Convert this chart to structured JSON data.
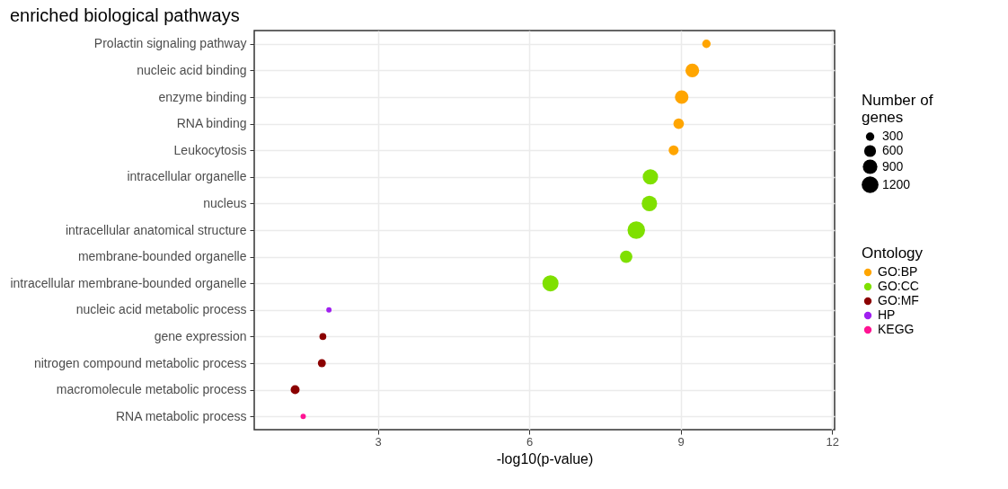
{
  "chart_data": {
    "type": "bubble",
    "title": "enriched biological pathways",
    "xlabel": "-log10(p-value)",
    "legend_title": [
      "Number of genes",
      "Ontology"
    ],
    "categories": [
      "Prolactin signaling pathway",
      "nucleic acid binding",
      "enzyme binding",
      "RNA binding",
      "Leukocytosis",
      "intracellular organelle",
      "nucleus",
      "intracellular anatomical structure",
      "membrane-bounded organelle",
      "intracellular membrane-bounded organelle",
      "nucleic acid metabolic process",
      "gene expression",
      "nitrogen compound metabolic process",
      "macromolecule metabolic process",
      "RNA metabolic process"
    ],
    "orientation": "horizontal",
    "series": [
      {
        "name": "GO:BP",
        "color": "#ffa500",
        "values": [
          9.51,
          9.23,
          9.02,
          8.96,
          8.86,
          null,
          null,
          null,
          null,
          null,
          null,
          null,
          null,
          null,
          null
        ],
        "sizes": [
          300,
          800,
          780,
          470,
          420,
          null,
          null,
          null,
          null,
          null,
          null,
          null,
          null,
          null,
          null
        ]
      },
      {
        "name": "GO:CC",
        "color": "#7fe000",
        "values": [
          null,
          null,
          null,
          null,
          null,
          8.4,
          8.38,
          8.12,
          7.92,
          6.42,
          null,
          null,
          null,
          null,
          null
        ],
        "sizes": [
          null,
          null,
          null,
          null,
          null,
          1000,
          1000,
          1300,
          650,
          1100,
          null,
          null,
          null,
          null,
          null
        ]
      },
      {
        "name": "GO:MF",
        "color": "#8b0000",
        "values": [
          null,
          null,
          null,
          null,
          null,
          null,
          null,
          null,
          null,
          null,
          null,
          1.91,
          1.89,
          1.36,
          null
        ],
        "sizes": [
          null,
          null,
          null,
          null,
          null,
          null,
          null,
          null,
          null,
          null,
          null,
          200,
          270,
          340,
          null
        ]
      },
      {
        "name": "HP",
        "color": "#a020f0",
        "values": [
          null,
          null,
          null,
          null,
          null,
          null,
          null,
          null,
          null,
          null,
          2.03,
          null,
          null,
          null,
          null
        ],
        "sizes": [
          null,
          null,
          null,
          null,
          null,
          null,
          null,
          null,
          null,
          null,
          120,
          null,
          null,
          null,
          null
        ]
      },
      {
        "name": "KEGG",
        "color": "#ff1493",
        "values": [
          null,
          null,
          null,
          null,
          null,
          null,
          null,
          null,
          null,
          null,
          null,
          null,
          null,
          null,
          1.52
        ],
        "sizes": [
          null,
          null,
          null,
          null,
          null,
          null,
          null,
          null,
          null,
          null,
          null,
          null,
          null,
          null,
          120
        ]
      }
    ],
    "size_legend": [
      300,
      600,
      900,
      1200
    ],
    "xlim": [
      0.55,
      12.05
    ],
    "xticks": [
      3,
      6,
      9,
      12
    ],
    "grid": true,
    "legend": "right",
    "marker": "circle"
  }
}
